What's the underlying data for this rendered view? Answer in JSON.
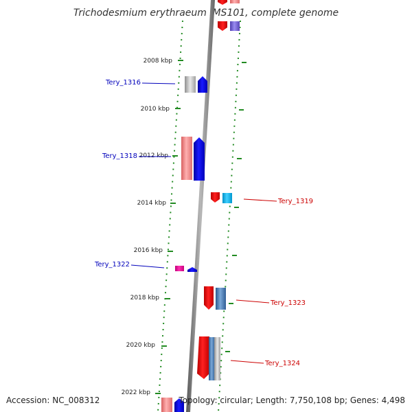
{
  "title": "Trichodesmium erythraeum IMS101, complete genome",
  "footer": {
    "accession": "Accession: NC_008312",
    "topology": "Topology: circular; Length: 7,750,108 bp; Genes: 4,498"
  },
  "ticks": [
    {
      "label": "2008 kbp"
    },
    {
      "label": "2010 kbp"
    },
    {
      "label": "2012 kbp"
    },
    {
      "label": "2014 kbp"
    },
    {
      "label": "2016 kbp"
    },
    {
      "label": "2018 kbp"
    },
    {
      "label": "2020 kbp"
    },
    {
      "label": "2022 kbp"
    }
  ],
  "gene_labels": [
    {
      "text": "Tery_1316",
      "color": "#0000bb"
    },
    {
      "text": "Tery_1318",
      "color": "#0000bb"
    },
    {
      "text": "Tery_1319",
      "color": "#cc0000"
    },
    {
      "text": "Tery_1322",
      "color": "#0000bb"
    },
    {
      "text": "Tery_1323",
      "color": "#cc0000"
    },
    {
      "text": "Tery_1324",
      "color": "#cc0000"
    }
  ],
  "colors": {
    "backbone": "#888888",
    "ticks": "#228b22",
    "forward_gene": "#0000ee",
    "reverse_gene": "#ee0000"
  }
}
